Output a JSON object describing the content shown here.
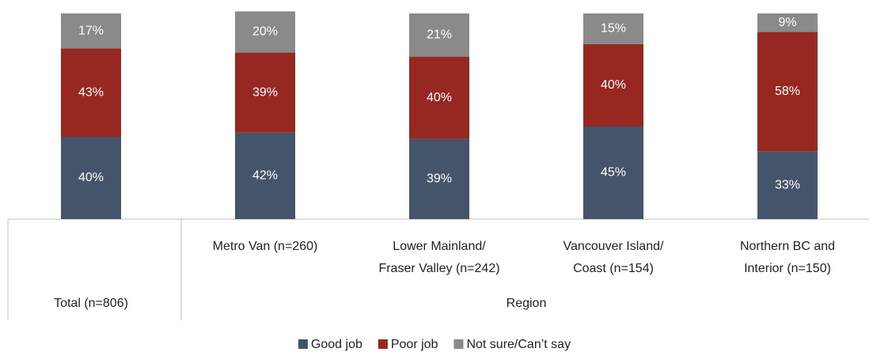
{
  "chart_data": {
    "type": "stacked_bar",
    "categories": [
      [
        "Total (n=806)"
      ],
      [
        "Metro Van (n=260)"
      ],
      [
        "Lower Mainland/",
        "Fraser Valley (n=242)"
      ],
      [
        "Vancouver Island/",
        "Coast (n=154)"
      ],
      [
        "Northern BC and",
        "Interior (n=150)"
      ]
    ],
    "group_label": "Region",
    "series": [
      {
        "name": "Good job",
        "color": "#44546a",
        "values": [
          40,
          42,
          39,
          45,
          33
        ],
        "value_labels": [
          "40%",
          "42%",
          "39%",
          "45%",
          "33%"
        ]
      },
      {
        "name": "Poor job",
        "color": "#962821",
        "values": [
          43,
          39,
          40,
          40,
          58
        ],
        "value_labels": [
          "43%",
          "39%",
          "40%",
          "40%",
          "58%"
        ]
      },
      {
        "name": "Not sure/Can’t say",
        "color": "#8a8a8a",
        "values": [
          17,
          20,
          21,
          15,
          9
        ],
        "value_labels": [
          "17%",
          "20%",
          "21%",
          "15%",
          "9%"
        ]
      }
    ]
  }
}
